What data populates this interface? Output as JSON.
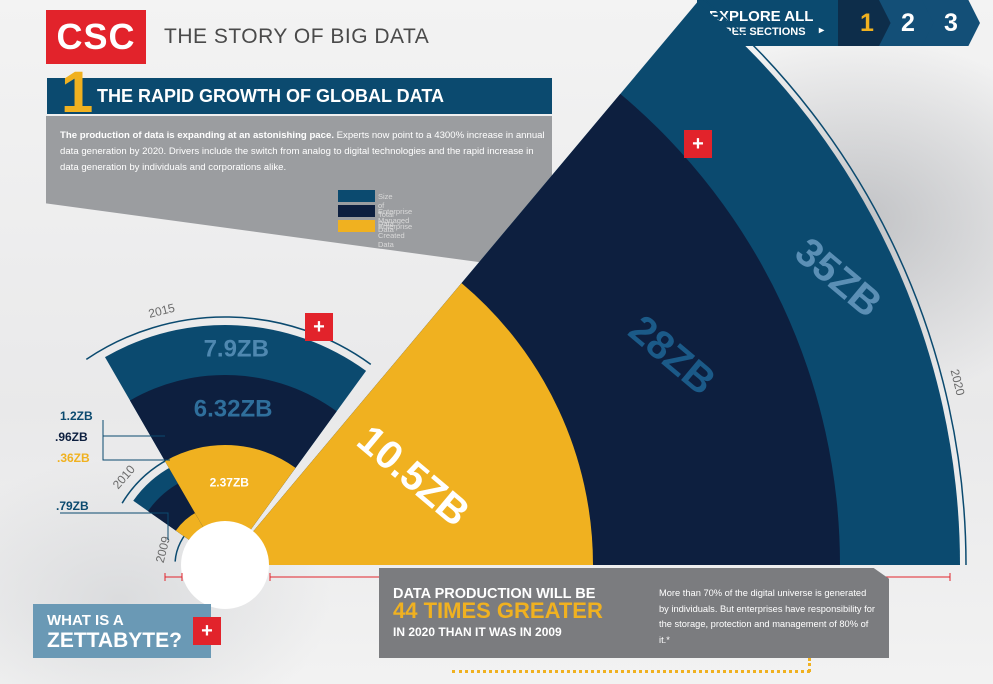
{
  "header": {
    "logo": "CSC",
    "title": "THE STORY OF BIG DATA",
    "explore_l1": "EXPLORE ALL",
    "explore_l2": "THREE SECTIONS",
    "explore_arrow": "▸",
    "sections": [
      "1",
      "2",
      "3"
    ]
  },
  "section": {
    "number": "1",
    "title": "THE RAPID GROWTH OF GLOBAL DATA",
    "intro_bold": "The production of data is expanding at an astonishing pace.",
    "intro_rest": " Experts now point to a 4300% increase in annual data generation by 2020. Drivers include the switch from analog to digital technologies and the rapid increase in data generation by individuals and corporations alike."
  },
  "colors": {
    "total": "#0b4a6f",
    "managed": "#0d1f3f",
    "created": "#f0b120",
    "accent_red": "#e2232b"
  },
  "chart_data": {
    "type": "radial-bar",
    "unit": "ZB",
    "series_order": [
      "Size of Total Data",
      "Enterprise Managed Data",
      "Enterprise Created Data"
    ],
    "legend": [
      "Size of Total Data",
      "Enterprise Managed Data",
      "Enterprise Created Data"
    ],
    "years": [
      {
        "year": "2009",
        "total": 0.79,
        "managed": null,
        "created": null,
        "labels": {
          "total": ".79ZB"
        }
      },
      {
        "year": "2010",
        "total": 1.2,
        "managed": 0.96,
        "created": 0.36,
        "labels": {
          "total": "1.2ZB",
          "managed": ".96ZB",
          "created": ".36ZB"
        }
      },
      {
        "year": "2015",
        "total": 7.9,
        "managed": 6.32,
        "created": 2.37,
        "labels": {
          "total": "7.9ZB",
          "managed": "6.32ZB",
          "created": "2.37ZB"
        }
      },
      {
        "year": "2020",
        "total": 35,
        "managed": 28,
        "created": 10.5,
        "labels": {
          "total": "35ZB",
          "managed": "28ZB",
          "created": "10.5ZB"
        }
      }
    ]
  },
  "zettabyte": {
    "l1": "WHAT IS A",
    "l2": "ZETTABYTE?",
    "plus": "+"
  },
  "callout": {
    "l1": "DATA PRODUCTION WILL BE",
    "l2": "44 TIMES GREATER",
    "l3": "IN 2020 THAN IT WAS IN 2009",
    "note": "More than 70% of the digital universe is generated by individuals. But enterprises have responsibility for the storage, protection and management of 80% of it.*"
  },
  "plus_buttons": [
    "+",
    "+"
  ]
}
